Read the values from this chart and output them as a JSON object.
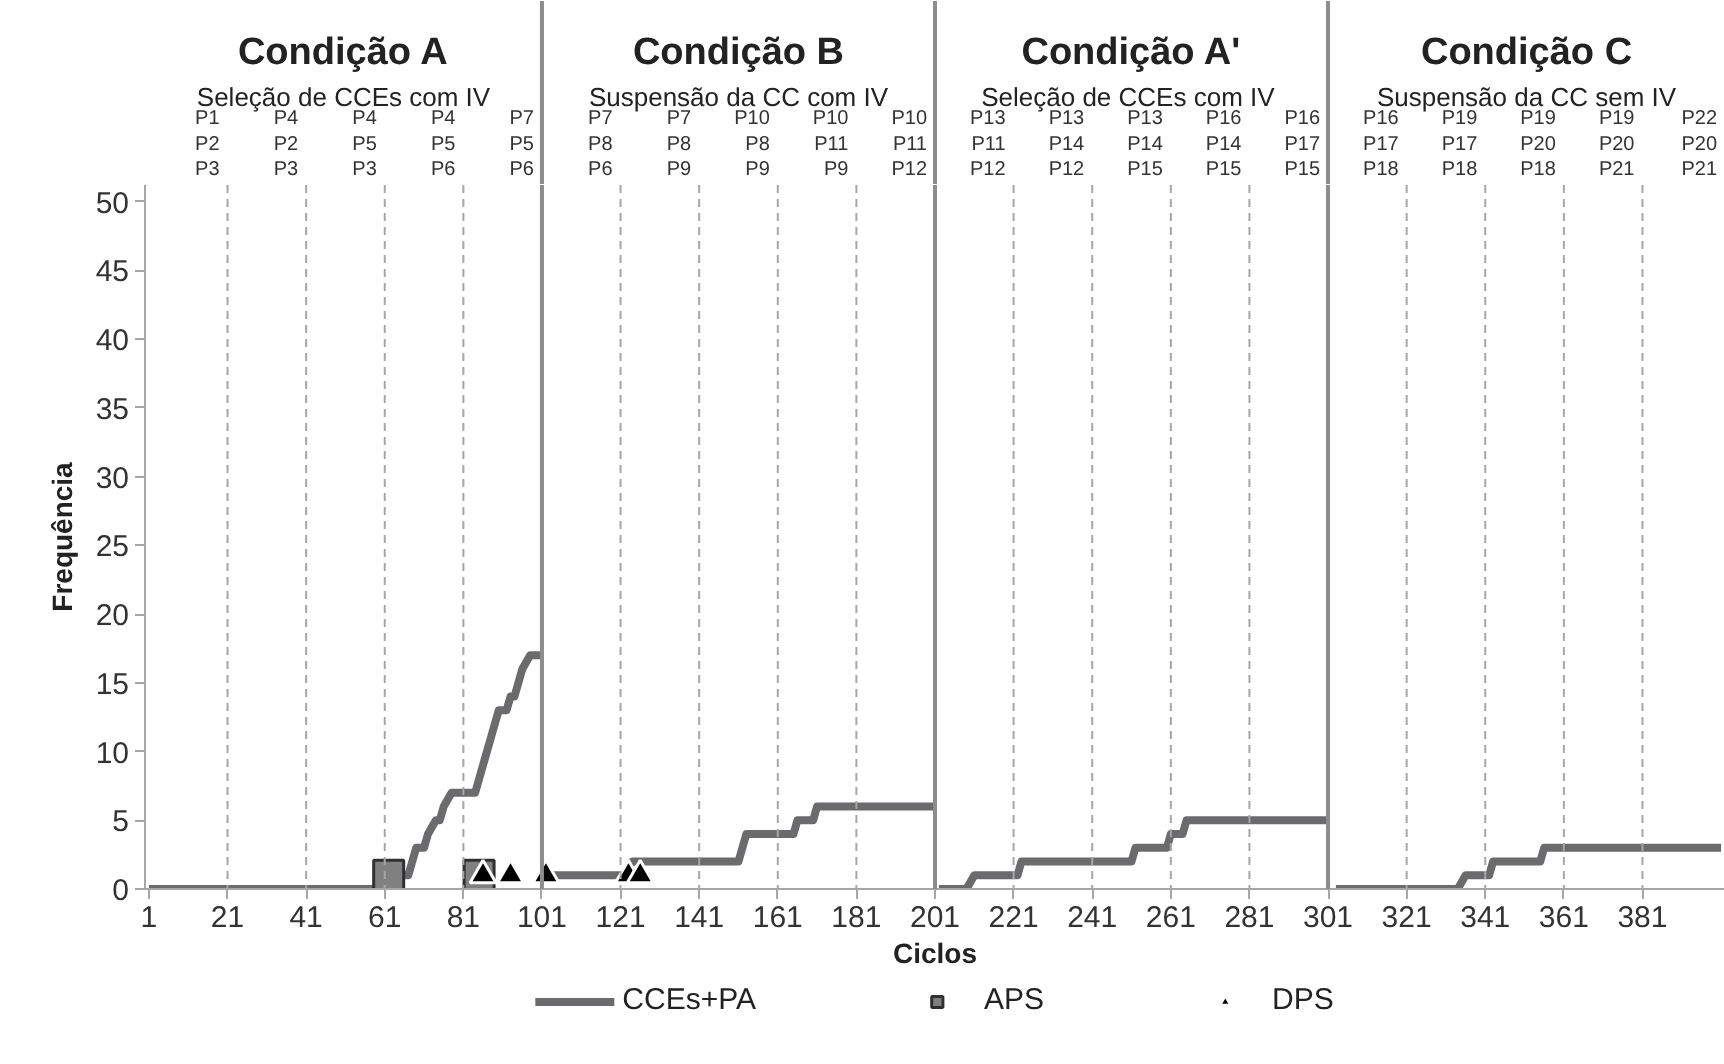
{
  "chart_data": {
    "type": "line",
    "xlabel": "Ciclos",
    "ylabel": "Frequência",
    "xlim": [
      0,
      402
    ],
    "ylim": [
      0,
      51.2
    ],
    "xticks": [
      1,
      21,
      41,
      61,
      81,
      101,
      121,
      141,
      161,
      181,
      201,
      221,
      241,
      261,
      281,
      301,
      321,
      341,
      361,
      381
    ],
    "yticks": [
      0,
      5,
      10,
      15,
      20,
      25,
      30,
      35,
      40,
      45,
      50
    ],
    "grid": false,
    "legend": "bottom",
    "series": [
      {
        "name": "CCEs+PA",
        "marker": "none",
        "line_style": "solid",
        "color": "#6b6b6d",
        "x": [
          1,
          59,
          60,
          67,
          68,
          69,
          71,
          72,
          74,
          75,
          76,
          78,
          84,
          85,
          86,
          88,
          89,
          90,
          92,
          93,
          94,
          96,
          98,
          101,
          102,
          103,
          122,
          124,
          151,
          153,
          165,
          166,
          170,
          171,
          201,
          201.5,
          202,
          209,
          211,
          222,
          223,
          251,
          252,
          260,
          261,
          264,
          265,
          301,
          302,
          303,
          334,
          336,
          342,
          343,
          355,
          356,
          401
        ],
        "values": [
          0,
          0,
          1,
          1,
          2,
          3,
          3,
          4,
          5,
          5,
          6,
          7,
          7,
          8,
          9,
          11,
          12,
          13,
          13,
          14,
          14,
          16,
          17,
          17,
          null,
          1,
          1,
          2,
          2,
          4,
          4,
          5,
          5,
          6,
          6,
          null,
          0,
          0,
          1,
          1,
          2,
          2,
          3,
          3,
          4,
          4,
          5,
          5,
          null,
          0,
          0,
          1,
          1,
          2,
          2,
          3,
          3
        ]
      },
      {
        "name": "APS",
        "type": "scatter",
        "marker": "square",
        "color": "#808080",
        "x": [
          62,
          85
        ],
        "values": [
          1,
          1
        ]
      },
      {
        "name": "DPS",
        "type": "scatter",
        "marker": "triangle",
        "color": "#000000",
        "x": [
          86,
          93,
          102,
          123,
          126
        ],
        "values": [
          1,
          1,
          1,
          1,
          1
        ]
      }
    ],
    "ref_lines": [
      {
        "axis": "x",
        "value": 101,
        "line_style": "solid",
        "color": "#8c8c8c"
      },
      {
        "axis": "x",
        "value": 201,
        "line_style": "solid",
        "color": "#8c8c8c"
      },
      {
        "axis": "x",
        "value": 301,
        "line_style": "solid",
        "color": "#8c8c8c"
      },
      {
        "axis": "x",
        "value": 21,
        "line_style": "dashed",
        "color": "#a6a6a6"
      },
      {
        "axis": "x",
        "value": 41,
        "line_style": "dashed",
        "color": "#a6a6a6"
      },
      {
        "axis": "x",
        "value": 61,
        "line_style": "dashed",
        "color": "#a6a6a6"
      },
      {
        "axis": "x",
        "value": 81,
        "line_style": "dashed",
        "color": "#a6a6a6"
      },
      {
        "axis": "x",
        "value": 121,
        "line_style": "dashed",
        "color": "#a6a6a6"
      },
      {
        "axis": "x",
        "value": 141,
        "line_style": "dashed",
        "color": "#a6a6a6"
      },
      {
        "axis": "x",
        "value": 161,
        "line_style": "dashed",
        "color": "#a6a6a6"
      },
      {
        "axis": "x",
        "value": 181,
        "line_style": "dashed",
        "color": "#a6a6a6"
      },
      {
        "axis": "x",
        "value": 221,
        "line_style": "dashed",
        "color": "#a6a6a6"
      },
      {
        "axis": "x",
        "value": 241,
        "line_style": "dashed",
        "color": "#a6a6a6"
      },
      {
        "axis": "x",
        "value": 261,
        "line_style": "dashed",
        "color": "#a6a6a6"
      },
      {
        "axis": "x",
        "value": 281,
        "line_style": "dashed",
        "color": "#a6a6a6"
      },
      {
        "axis": "x",
        "value": 321,
        "line_style": "dashed",
        "color": "#a6a6a6"
      },
      {
        "axis": "x",
        "value": 341,
        "line_style": "dashed",
        "color": "#a6a6a6"
      },
      {
        "axis": "x",
        "value": 361,
        "line_style": "dashed",
        "color": "#a6a6a6"
      },
      {
        "axis": "x",
        "value": 381,
        "line_style": "dashed",
        "color": "#a6a6a6"
      }
    ],
    "annotations": [
      "Condição A",
      "Condição B",
      "Condição A'",
      "Condição C",
      "Seleção de CCEs com IV",
      "Suspensão da CC com IV",
      "Seleção de CCEs  com IV",
      "Suspensão da CC sem IV",
      "P1\nP2\nP3",
      "P4\nP2\nP3",
      "P4\nP5\nP3",
      "P4\nP5\nP6",
      "P7\nP5\nP6",
      "P7\nP8\nP6",
      "P7\nP8\nP9",
      "P10\nP8\nP9",
      "P10\nP11\nP9",
      "P10\nP11\nP12",
      "P13\nP11\nP12",
      "P13\nP14\nP12",
      "P13\nP14\nP15",
      "P16\nP14\nP15",
      "P16\nP17\nP15",
      "P16\nP17\nP18",
      "P19\nP17\nP18",
      "P19\nP20\nP18",
      "P19\nP20\nP21",
      "P22\nP20\nP21"
    ]
  }
}
